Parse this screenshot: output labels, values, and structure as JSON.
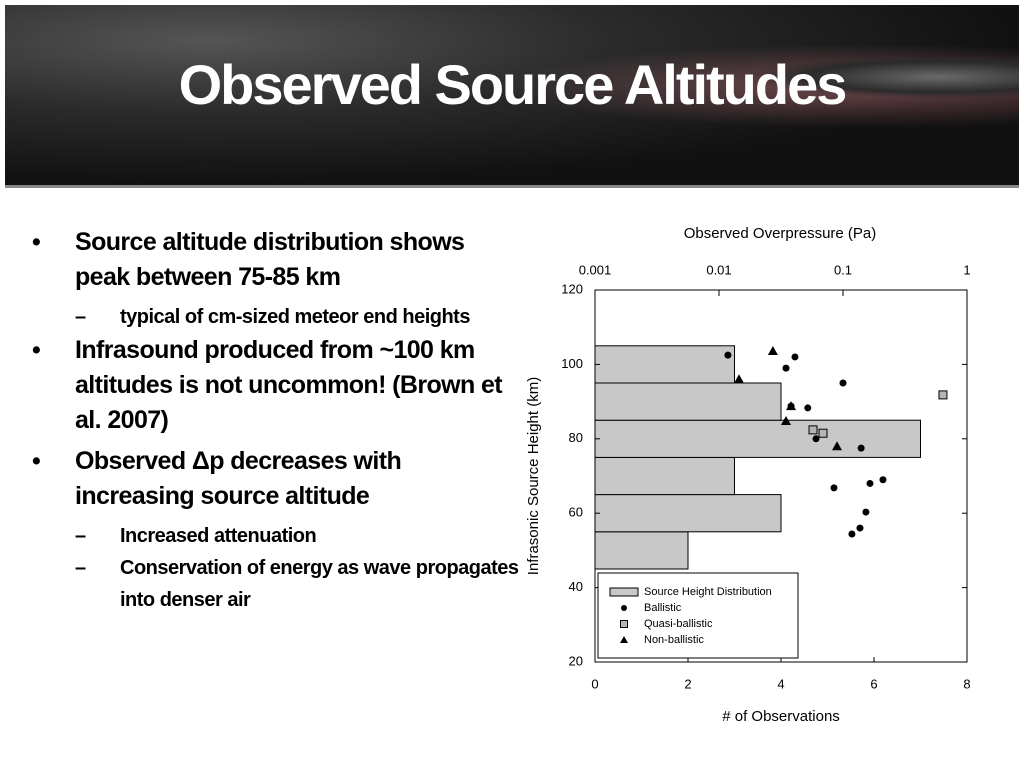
{
  "slide": {
    "title": "Observed Source Altitudes",
    "bullets": [
      {
        "text": "Source altitude distribution shows peak between 75-85 km",
        "sub": [
          "typical of cm-sized meteor end heights"
        ]
      },
      {
        "text": "Infrasound produced from ~100 km altitudes is not uncommon! (Brown et al. 2007)",
        "sub": []
      },
      {
        "text": "Observed Δp decreases with increasing source altitude",
        "sub": [
          "Increased attenuation",
          "Conservation of energy as wave propagates into denser air"
        ]
      }
    ]
  },
  "chart_data": [
    {
      "type": "histogram",
      "orientation": "horizontal",
      "name": "Source Height Distribution",
      "color": "#c8c8c8",
      "bins": [
        45,
        55,
        65,
        75,
        85,
        95,
        105
      ],
      "counts": [
        2,
        4,
        3,
        7,
        4,
        3
      ],
      "xlabel": "# of Observations",
      "ylabel": "Infrasonic Source Height (km)",
      "xlim": [
        0,
        8
      ],
      "xticks": [
        0,
        2,
        4,
        6,
        8
      ],
      "ylim": [
        20,
        120
      ],
      "yticks": [
        20,
        40,
        60,
        80,
        100,
        120
      ],
      "legend": "lower left"
    },
    {
      "type": "scatter",
      "xscale": "log",
      "xlabel": "Observed Overpressure (Pa)",
      "xlim": [
        0.001,
        1
      ],
      "xticks": [
        0.001,
        0.01,
        0.1,
        1
      ],
      "ylim": [
        20,
        120
      ],
      "series": [
        {
          "name": "Ballistic",
          "color": "#000000",
          "marker": "circle",
          "x": [
            0.0118,
            0.041,
            0.0347,
            0.1,
            0.0381,
            0.052,
            0.0606,
            0.14,
            0.21,
            0.165,
            0.0846,
            0.153,
            0.137,
            0.118
          ],
          "y": [
            102.5,
            102,
            99,
            95,
            88.8,
            88.3,
            80,
            77.5,
            69,
            68,
            66.8,
            60.3,
            56,
            54.4
          ]
        },
        {
          "name": "Quasi-ballistic",
          "color": "#b4b4b4",
          "marker": "square",
          "x": [
            0.0573,
            0.069,
            0.64
          ],
          "y": [
            82.4,
            81.5,
            91.8
          ]
        },
        {
          "name": "Non-ballistic",
          "color": "#000000",
          "marker": "triangle",
          "x": [
            0.0272,
            0.0145,
            0.0381,
            0.0347,
            0.0895
          ],
          "y": [
            103.6,
            96,
            88.8,
            84.8,
            78
          ]
        }
      ]
    }
  ]
}
